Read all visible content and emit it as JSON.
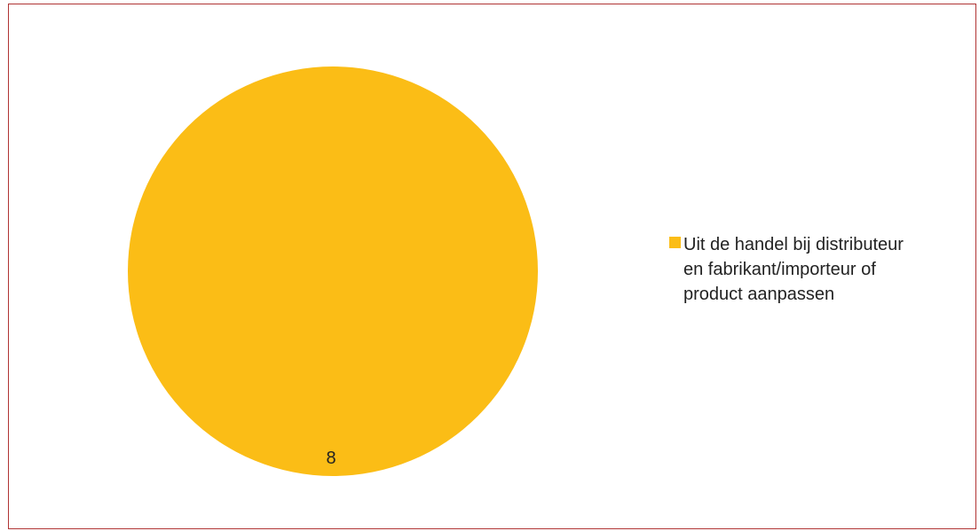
{
  "chart_data": {
    "type": "pie",
    "slices": [
      {
        "label": "Uit de handel bij distributeur en fabrikant/importeur of product aanpassen",
        "value": 8,
        "color": "#fbbd16"
      }
    ],
    "data_labels_shown": true,
    "legend_position": "right"
  }
}
